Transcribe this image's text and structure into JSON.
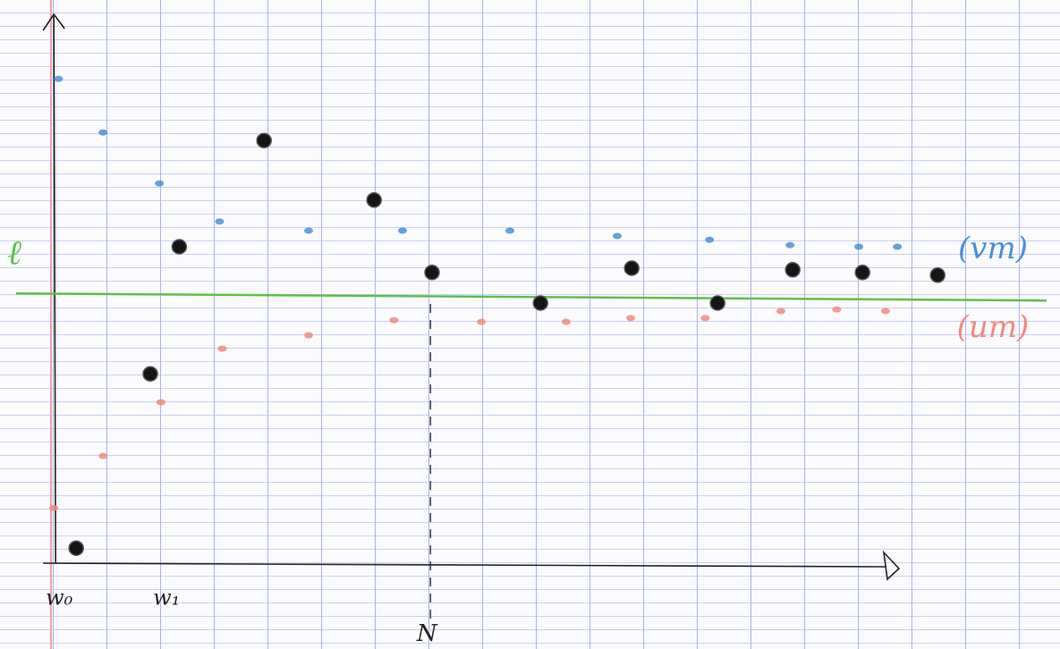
{
  "chart_data": {
    "type": "scatter",
    "xlim": [
      -0.97,
      18.78
    ],
    "ylim": [
      -1.6,
      10.5
    ],
    "xticks": [
      {
        "value": 0,
        "label": "w₀"
      },
      {
        "value": 2,
        "label": "w₁"
      }
    ],
    "hline": {
      "value": 5.03,
      "label": "ℓ",
      "color": "#5cc24a"
    },
    "vline": {
      "value": 7.05,
      "label": "N"
    },
    "series": [
      {
        "color": "#151515",
        "x": [
          0.45,
          1.83,
          2.37,
          3.95,
          6.0,
          7.08,
          9.1,
          10.8,
          12.4,
          13.8,
          15.1,
          16.5
        ],
        "values": [
          0.28,
          3.53,
          5.9,
          7.88,
          6.77,
          5.42,
          4.85,
          5.5,
          4.85,
          5.47,
          5.42,
          5.37
        ]
      },
      {
        "name": "(vm)",
        "color": "#4a90d9",
        "x": [
          0.12,
          0.95,
          2.0,
          3.12,
          4.78,
          6.53,
          8.53,
          10.53,
          12.25,
          13.75,
          15.03,
          15.75
        ],
        "values": [
          9.03,
          8.03,
          7.08,
          6.37,
          6.2,
          6.2,
          6.2,
          6.1,
          6.03,
          5.93,
          5.9,
          5.9
        ]
      },
      {
        "name": "(um)",
        "color": "#f08a80",
        "x": [
          0.03,
          0.95,
          2.03,
          3.17,
          4.78,
          6.37,
          8.0,
          9.58,
          10.78,
          12.17,
          13.58,
          14.62,
          15.53
        ],
        "values": [
          1.03,
          2.0,
          3.0,
          4.0,
          4.25,
          4.53,
          4.5,
          4.5,
          4.57,
          4.57,
          4.7,
          4.73,
          4.7
        ]
      }
    ]
  }
}
